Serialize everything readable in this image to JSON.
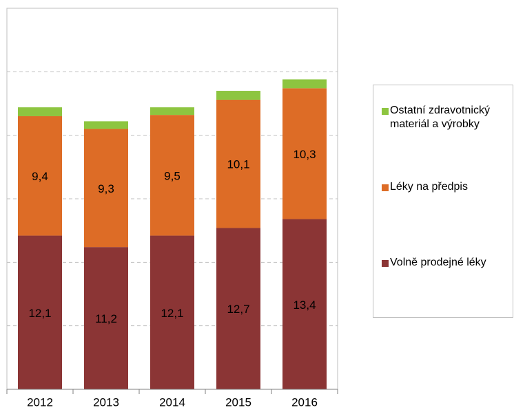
{
  "chart_data": {
    "type": "stacked-bar",
    "categories": [
      "2012",
      "2013",
      "2014",
      "2015",
      "2016"
    ],
    "series": [
      {
        "name": "Volně prodejné léky",
        "color": "#8b3535",
        "values": [
          12.1,
          11.2,
          12.1,
          12.7,
          13.4
        ],
        "value_labels": [
          "12,1",
          "11,2",
          "12,1",
          "12,7",
          "13,4"
        ]
      },
      {
        "name": "Léky na předpis",
        "color": "#dd6c26",
        "values": [
          9.4,
          9.3,
          9.5,
          10.1,
          10.3
        ],
        "value_labels": [
          "9,4",
          "9,3",
          "9,5",
          "10,1",
          "10,3"
        ]
      },
      {
        "name": "Ostatní zdravotnický materiál a výrobky",
        "color": "#8dc540",
        "values": [
          0.7,
          0.6,
          0.6,
          0.7,
          0.7
        ]
      }
    ],
    "ylim": [
      0,
      30
    ],
    "yticks": [
      5,
      10,
      15,
      20,
      25
    ],
    "grid": true
  }
}
